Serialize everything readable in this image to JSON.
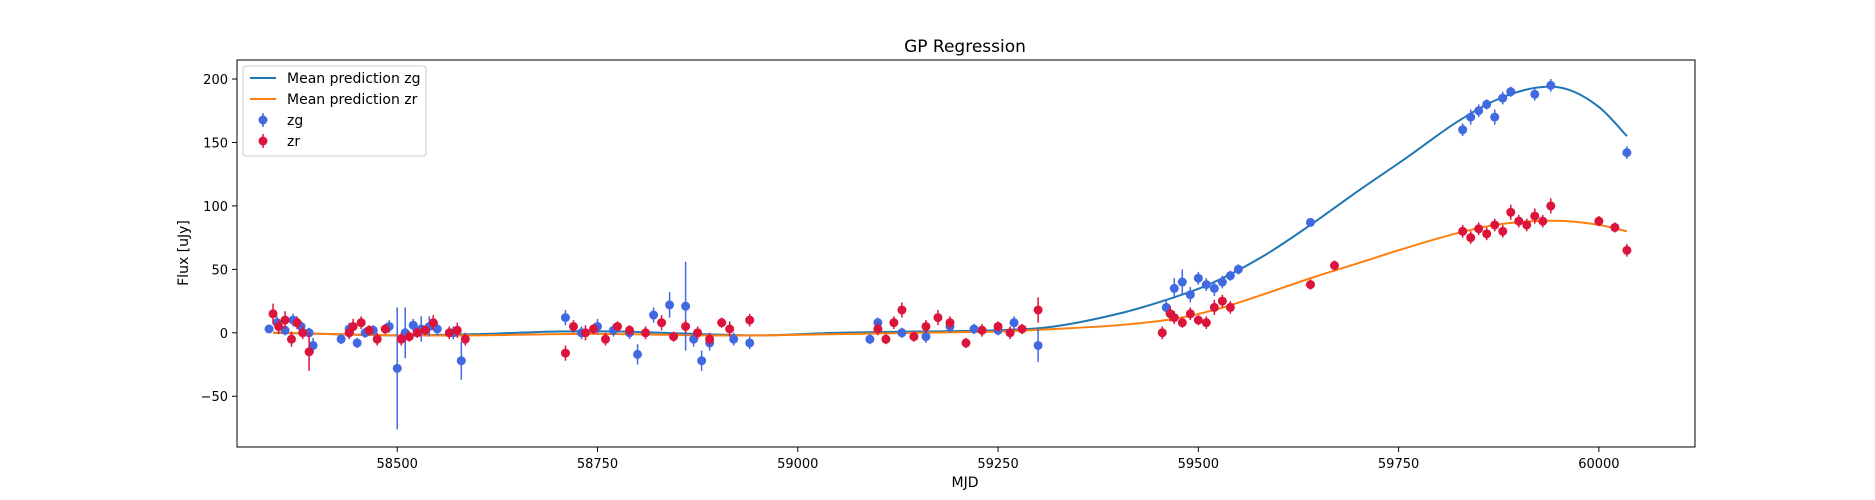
{
  "chart_data": {
    "type": "scatter",
    "title": "GP Regression",
    "xlabel": "MJD",
    "ylabel": "Flux [uJy]",
    "xlim": [
      58300,
      60120
    ],
    "ylim": [
      -90,
      215
    ],
    "xticks": [
      58500,
      58750,
      59000,
      59250,
      59500,
      59750,
      60000
    ],
    "yticks": [
      -50,
      0,
      50,
      100,
      150,
      200
    ],
    "legend": {
      "position": "top-left",
      "entries": [
        "Mean prediction zg",
        "Mean prediction zr",
        "zg",
        "zr"
      ]
    },
    "colors": {
      "zg_line": "#1f77b4",
      "zr_line": "#ff7f0e",
      "zg_points": "#4169e1",
      "zr_points": "#dc143c"
    },
    "series": [
      {
        "name": "Mean prediction zg",
        "kind": "line",
        "x": [
          58345,
          58420,
          58500,
          58600,
          58700,
          58780,
          58880,
          58960,
          59050,
          59150,
          59250,
          59320,
          59400,
          59470,
          59520,
          59580,
          59640,
          59700,
          59760,
          59820,
          59870,
          59920,
          59960,
          60000,
          60035
        ],
        "y": [
          0,
          -1,
          -2,
          -1,
          1,
          1,
          -1,
          -2,
          0,
          1,
          2,
          5,
          15,
          28,
          40,
          60,
          85,
          112,
          138,
          165,
          183,
          193,
          192,
          178,
          155
        ]
      },
      {
        "name": "Mean prediction zr",
        "kind": "line",
        "x": [
          58345,
          58420,
          58500,
          58600,
          58700,
          58780,
          58880,
          58960,
          59050,
          59150,
          59250,
          59320,
          59400,
          59470,
          59520,
          59580,
          59640,
          59700,
          59760,
          59820,
          59870,
          59920,
          59960,
          60000,
          60035
        ],
        "y": [
          0,
          -1,
          -2,
          -2,
          -1,
          -1,
          -2,
          -2,
          -1,
          0,
          1,
          3,
          6,
          11,
          18,
          30,
          43,
          55,
          67,
          78,
          85,
          88,
          88,
          85,
          80
        ]
      },
      {
        "name": "zg",
        "kind": "errorbar",
        "x": [
          58340,
          58350,
          58360,
          58370,
          58380,
          58390,
          58395,
          58430,
          58440,
          58450,
          58460,
          58470,
          58490,
          58500,
          58510,
          58520,
          58530,
          58540,
          58550,
          58570,
          58580,
          58710,
          58730,
          58750,
          58770,
          58790,
          58800,
          58820,
          58840,
          58860,
          58870,
          58880,
          58890,
          58920,
          58940,
          59090,
          59100,
          59130,
          59160,
          59190,
          59220,
          59250,
          59270,
          59300,
          59460,
          59470,
          59480,
          59490,
          59500,
          59510,
          59520,
          59530,
          59540,
          59550,
          59640,
          59830,
          59840,
          59850,
          59860,
          59870,
          59880,
          59890,
          59920,
          59940,
          60035
        ],
        "y": [
          3,
          8,
          2,
          10,
          5,
          0,
          -10,
          -5,
          3,
          -8,
          0,
          2,
          5,
          -28,
          0,
          6,
          3,
          5,
          3,
          0,
          -22,
          12,
          0,
          5,
          2,
          0,
          -17,
          14,
          22,
          21,
          -5,
          -22,
          -8,
          -5,
          -8,
          -5,
          8,
          0,
          -3,
          5,
          3,
          2,
          8,
          -10,
          20,
          35,
          40,
          30,
          43,
          38,
          35,
          40,
          45,
          50,
          87,
          160,
          170,
          175,
          180,
          170,
          185,
          190,
          188,
          195,
          142
        ],
        "yerr": [
          3,
          5,
          4,
          5,
          4,
          4,
          6,
          4,
          5,
          4,
          4,
          4,
          5,
          48,
          20,
          5,
          10,
          8,
          5,
          5,
          15,
          6,
          5,
          6,
          5,
          5,
          8,
          6,
          10,
          35,
          6,
          8,
          6,
          5,
          5,
          4,
          4,
          4,
          5,
          5,
          4,
          4,
          5,
          13,
          5,
          8,
          10,
          6,
          5,
          5,
          6,
          5,
          4,
          4,
          3,
          5,
          6,
          5,
          4,
          6,
          5,
          4,
          5,
          5,
          5
        ]
      },
      {
        "name": "zr",
        "kind": "errorbar",
        "x": [
          58345,
          58352,
          58360,
          58368,
          58375,
          58382,
          58390,
          58440,
          58445,
          58455,
          58465,
          58475,
          58485,
          58505,
          58515,
          58525,
          58535,
          58545,
          58565,
          58575,
          58585,
          58710,
          58720,
          58735,
          58745,
          58760,
          58775,
          58790,
          58810,
          58830,
          58845,
          58860,
          58875,
          58890,
          58905,
          58915,
          58940,
          59100,
          59110,
          59120,
          59130,
          59145,
          59160,
          59175,
          59190,
          59210,
          59230,
          59250,
          59265,
          59280,
          59300,
          59455,
          59465,
          59470,
          59480,
          59490,
          59500,
          59510,
          59520,
          59530,
          59540,
          59640,
          59670,
          59830,
          59840,
          59850,
          59860,
          59870,
          59880,
          59890,
          59900,
          59910,
          59920,
          59930,
          59940,
          60000,
          60020,
          60035
        ],
        "y": [
          15,
          5,
          10,
          -5,
          8,
          0,
          -15,
          0,
          5,
          8,
          2,
          -5,
          3,
          -5,
          -3,
          0,
          2,
          8,
          0,
          2,
          -5,
          -16,
          5,
          0,
          3,
          -5,
          5,
          2,
          0,
          8,
          -3,
          5,
          0,
          -5,
          8,
          3,
          10,
          3,
          -5,
          8,
          18,
          -3,
          5,
          12,
          8,
          -8,
          2,
          5,
          0,
          3,
          18,
          0,
          15,
          12,
          8,
          15,
          10,
          8,
          20,
          25,
          20,
          38,
          53,
          80,
          75,
          82,
          78,
          85,
          80,
          95,
          88,
          85,
          92,
          88,
          100,
          88,
          83,
          65
        ],
        "yerr": [
          8,
          6,
          7,
          6,
          5,
          5,
          15,
          5,
          6,
          5,
          4,
          5,
          4,
          5,
          4,
          4,
          4,
          6,
          5,
          6,
          5,
          6,
          5,
          6,
          4,
          5,
          4,
          4,
          5,
          6,
          4,
          5,
          5,
          5,
          4,
          6,
          5,
          5,
          4,
          5,
          6,
          4,
          5,
          6,
          5,
          4,
          5,
          4,
          5,
          4,
          10,
          5,
          6,
          5,
          4,
          5,
          4,
          5,
          6,
          5,
          5,
          4,
          4,
          5,
          5,
          5,
          5,
          5,
          5,
          6,
          5,
          5,
          6,
          5,
          6,
          4,
          4,
          5
        ]
      }
    ]
  }
}
